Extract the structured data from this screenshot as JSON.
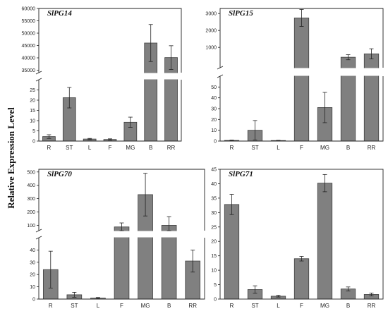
{
  "shared": {
    "ylabel": "Relative Expression Level",
    "bar_color": "#808080",
    "bar_edge_color": "#404040"
  },
  "chart_data": [
    {
      "type": "bar",
      "title": "SlPG14",
      "categories": [
        "R",
        "ST",
        "L",
        "F",
        "MG",
        "B",
        "RR"
      ],
      "values": [
        2.2,
        21.2,
        1.0,
        0.8,
        9.2,
        46000,
        40100
      ],
      "errors": [
        0.9,
        5.0,
        0.3,
        0.3,
        2.5,
        7500,
        4800
      ],
      "axis_break": true,
      "lower_ylim": [
        0,
        30
      ],
      "lower_ticks": [
        0,
        5,
        10,
        15,
        20,
        25
      ],
      "upper_ylim": [
        34000,
        60000
      ],
      "upper_ticks": [
        35000,
        40000,
        45000,
        50000,
        55000,
        60000
      ]
    },
    {
      "type": "bar",
      "title": "SlPG15",
      "categories": [
        "R",
        "ST",
        "L",
        "F",
        "MG",
        "B",
        "RR"
      ],
      "values": [
        0.6,
        10.0,
        0.5,
        2740,
        31.0,
        420,
        620
      ],
      "errors": [
        0.3,
        9.0,
        0.2,
        500,
        14.0,
        150,
        300
      ],
      "axis_break": true,
      "lower_ylim": [
        0,
        60
      ],
      "lower_ticks": [
        0,
        10,
        20,
        30,
        40,
        50
      ],
      "upper_ylim": [
        -200,
        3300
      ],
      "upper_ticks": [
        1000,
        2000,
        3000
      ]
    },
    {
      "type": "bar",
      "title": "SlPG70",
      "categories": [
        "R",
        "ST",
        "L",
        "F",
        "MG",
        "B",
        "RR"
      ],
      "values": [
        24.0,
        3.5,
        0.8,
        88,
        330,
        100,
        31.0
      ],
      "errors": [
        15.0,
        2.0,
        0.5,
        30,
        160,
        65,
        9.0
      ],
      "axis_break": true,
      "lower_ylim": [
        0,
        50
      ],
      "lower_ticks": [
        0,
        10,
        20,
        30,
        40
      ],
      "upper_ylim": [
        60,
        520
      ],
      "upper_ticks": [
        100,
        200,
        300,
        400,
        500
      ]
    },
    {
      "type": "bar",
      "title": "SlPG71",
      "categories": [
        "R",
        "ST",
        "L",
        "F",
        "MG",
        "B",
        "RR"
      ],
      "values": [
        32.8,
        3.3,
        1.0,
        14.0,
        40.2,
        3.5,
        1.6
      ],
      "errors": [
        3.5,
        1.3,
        0.3,
        0.8,
        3.0,
        0.7,
        0.5
      ],
      "axis_break": false,
      "ylim": [
        0,
        45
      ],
      "ticks": [
        0,
        5,
        10,
        15,
        20,
        25,
        30,
        35,
        40,
        45
      ]
    }
  ]
}
